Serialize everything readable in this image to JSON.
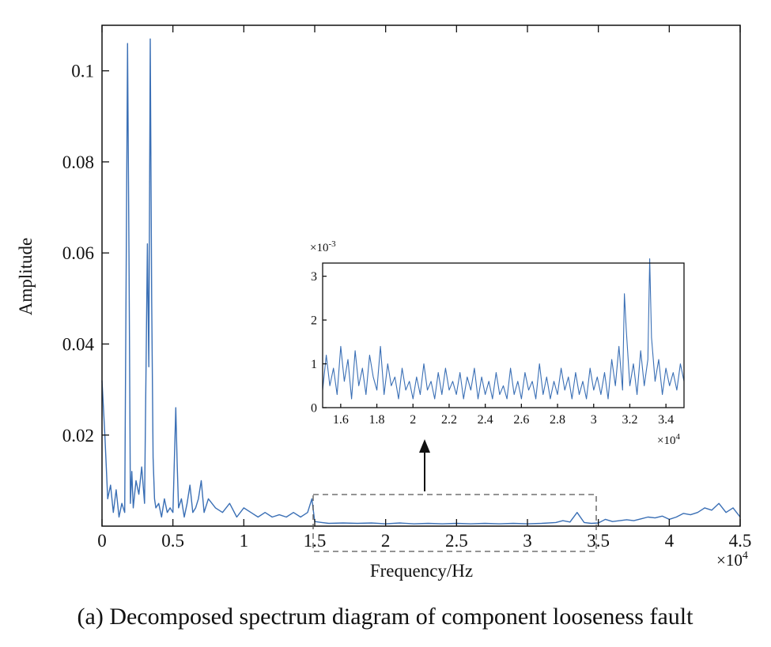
{
  "caption": "(a) Decomposed spectrum diagram of component looseness fault",
  "colors": {
    "line": "#3a6fb5",
    "axis": "#111111",
    "box": "#555555"
  },
  "chart_data": [
    {
      "type": "line",
      "xlabel": "Frequency/Hz",
      "ylabel": "Amplitude",
      "x_multiplier_label": "×10",
      "x_multiplier_exp": "4",
      "xlim": [
        0,
        4.5
      ],
      "ylim": [
        0,
        0.11
      ],
      "xticks": [
        0,
        0.5,
        1,
        1.5,
        2,
        2.5,
        3,
        3.5,
        4,
        4.5
      ],
      "xtick_labels": [
        "0",
        "0.5",
        "1",
        "1.5",
        "2",
        "2.5",
        "3",
        "3.5",
        "4",
        "4.5"
      ],
      "yticks": [
        0.02,
        0.04,
        0.06,
        0.08,
        0.1
      ],
      "ytick_labels": [
        "0.02",
        "0.04",
        "0.06",
        "0.08",
        "0.1"
      ],
      "grid": false,
      "series": [
        {
          "x": [
            0.0,
            0.02,
            0.04,
            0.06,
            0.08,
            0.1,
            0.12,
            0.14,
            0.16,
            0.18,
            0.19,
            0.2,
            0.21,
            0.22,
            0.24,
            0.26,
            0.28,
            0.3,
            0.32,
            0.33,
            0.34,
            0.35,
            0.36,
            0.37,
            0.38,
            0.4,
            0.42,
            0.44,
            0.46,
            0.48,
            0.5,
            0.52,
            0.53,
            0.54,
            0.56,
            0.58,
            0.6,
            0.62,
            0.64,
            0.66,
            0.68,
            0.7,
            0.72,
            0.75,
            0.8,
            0.85,
            0.9,
            0.95,
            1.0,
            1.05,
            1.1,
            1.15,
            1.2,
            1.25,
            1.3,
            1.35,
            1.4,
            1.45,
            1.48,
            1.5,
            1.55,
            1.6,
            1.7,
            1.8,
            1.9,
            2.0,
            2.1,
            2.2,
            2.3,
            2.4,
            2.5,
            2.6,
            2.7,
            2.8,
            2.9,
            3.0,
            3.1,
            3.2,
            3.25,
            3.3,
            3.35,
            3.4,
            3.45,
            3.5,
            3.55,
            3.6,
            3.65,
            3.7,
            3.75,
            3.8,
            3.85,
            3.9,
            3.95,
            4.0,
            4.05,
            4.1,
            4.15,
            4.2,
            4.25,
            4.3,
            4.35,
            4.4,
            4.45,
            4.5
          ],
          "y": [
            0.032,
            0.02,
            0.006,
            0.009,
            0.003,
            0.008,
            0.002,
            0.005,
            0.003,
            0.106,
            0.06,
            0.005,
            0.012,
            0.004,
            0.01,
            0.007,
            0.013,
            0.005,
            0.062,
            0.035,
            0.107,
            0.05,
            0.015,
            0.006,
            0.004,
            0.005,
            0.002,
            0.006,
            0.003,
            0.004,
            0.003,
            0.026,
            0.014,
            0.004,
            0.006,
            0.002,
            0.005,
            0.009,
            0.003,
            0.004,
            0.006,
            0.01,
            0.003,
            0.006,
            0.004,
            0.003,
            0.005,
            0.002,
            0.004,
            0.003,
            0.002,
            0.003,
            0.002,
            0.0025,
            0.002,
            0.003,
            0.002,
            0.003,
            0.006,
            0.001,
            0.0008,
            0.0006,
            0.0007,
            0.0006,
            0.0007,
            0.0005,
            0.0007,
            0.0005,
            0.0006,
            0.0005,
            0.0006,
            0.0005,
            0.0006,
            0.0005,
            0.0006,
            0.0005,
            0.0006,
            0.0008,
            0.0012,
            0.0009,
            0.003,
            0.0008,
            0.0006,
            0.0007,
            0.0015,
            0.001,
            0.0012,
            0.0014,
            0.0012,
            0.0016,
            0.002,
            0.0018,
            0.0022,
            0.0015,
            0.002,
            0.0028,
            0.0025,
            0.003,
            0.004,
            0.0035,
            0.005,
            0.003,
            0.004,
            0.002
          ]
        }
      ],
      "highlight_box_xrange": [
        1.5,
        3.5
      ]
    },
    {
      "type": "line",
      "xlim": [
        1.5,
        3.5
      ],
      "ylim": [
        0,
        0.0033
      ],
      "x_multiplier_label": "×10",
      "x_multiplier_exp": "4",
      "y_multiplier_label": "×10",
      "y_multiplier_exp": "-3",
      "xticks": [
        1.6,
        1.8,
        2,
        2.2,
        2.4,
        2.6,
        2.8,
        3,
        3.2,
        3.4
      ],
      "xtick_labels": [
        "1.6",
        "1.8",
        "2",
        "2.2",
        "2.4",
        "2.6",
        "2.8",
        "3",
        "3.2",
        "3.4"
      ],
      "yticks": [
        0,
        0.001,
        0.002,
        0.003
      ],
      "ytick_labels": [
        "0",
        "1",
        "2",
        "3"
      ],
      "grid": false,
      "series": [
        {
          "x": [
            1.5,
            1.52,
            1.54,
            1.56,
            1.58,
            1.6,
            1.62,
            1.64,
            1.66,
            1.68,
            1.7,
            1.72,
            1.74,
            1.76,
            1.78,
            1.8,
            1.82,
            1.84,
            1.86,
            1.88,
            1.9,
            1.92,
            1.94,
            1.96,
            1.98,
            2.0,
            2.02,
            2.04,
            2.06,
            2.08,
            2.1,
            2.12,
            2.14,
            2.16,
            2.18,
            2.2,
            2.22,
            2.24,
            2.26,
            2.28,
            2.3,
            2.32,
            2.34,
            2.36,
            2.38,
            2.4,
            2.42,
            2.44,
            2.46,
            2.48,
            2.5,
            2.52,
            2.54,
            2.56,
            2.58,
            2.6,
            2.62,
            2.64,
            2.66,
            2.68,
            2.7,
            2.72,
            2.74,
            2.76,
            2.78,
            2.8,
            2.82,
            2.84,
            2.86,
            2.88,
            2.9,
            2.92,
            2.94,
            2.96,
            2.98,
            3.0,
            3.02,
            3.04,
            3.06,
            3.08,
            3.1,
            3.12,
            3.14,
            3.16,
            3.17,
            3.18,
            3.2,
            3.22,
            3.24,
            3.26,
            3.28,
            3.3,
            3.31,
            3.32,
            3.34,
            3.36,
            3.38,
            3.4,
            3.42,
            3.44,
            3.46,
            3.48,
            3.5
          ],
          "y": [
            0.0004,
            0.0012,
            0.0005,
            0.0009,
            0.0003,
            0.0014,
            0.0006,
            0.0011,
            0.0002,
            0.0013,
            0.0005,
            0.0009,
            0.0003,
            0.0012,
            0.0007,
            0.0004,
            0.0014,
            0.0003,
            0.001,
            0.0005,
            0.0007,
            0.0002,
            0.0009,
            0.0004,
            0.0006,
            0.0002,
            0.0007,
            0.0003,
            0.001,
            0.0004,
            0.0006,
            0.0002,
            0.0008,
            0.0003,
            0.0009,
            0.0004,
            0.0006,
            0.0003,
            0.0008,
            0.0002,
            0.0007,
            0.0004,
            0.0009,
            0.0002,
            0.0007,
            0.0003,
            0.0006,
            0.0002,
            0.0008,
            0.0003,
            0.0005,
            0.0002,
            0.0009,
            0.0003,
            0.0006,
            0.0002,
            0.0008,
            0.0004,
            0.0006,
            0.0002,
            0.001,
            0.0003,
            0.0007,
            0.0002,
            0.0006,
            0.0003,
            0.0009,
            0.0004,
            0.0007,
            0.0002,
            0.0008,
            0.0003,
            0.0006,
            0.0002,
            0.0009,
            0.0004,
            0.0007,
            0.0003,
            0.0008,
            0.0002,
            0.0011,
            0.0005,
            0.0014,
            0.0004,
            0.0026,
            0.0018,
            0.0005,
            0.001,
            0.0003,
            0.0013,
            0.0005,
            0.0011,
            0.0034,
            0.0016,
            0.0006,
            0.0011,
            0.0003,
            0.0009,
            0.0005,
            0.0008,
            0.0004,
            0.001,
            0.0006
          ]
        }
      ]
    }
  ]
}
